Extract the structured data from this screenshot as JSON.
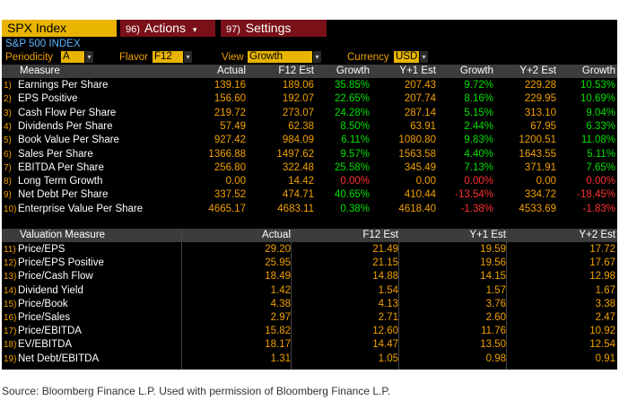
{
  "toolbar": {
    "index_label": "SPX Index",
    "actions_num": "96)",
    "actions_label": "Actions",
    "actions_arrow": "▾",
    "settings_num": "97)",
    "settings_label": "Settings"
  },
  "security_name": "S&P 500 INDEX",
  "controls": {
    "periodicity_label": "Periodicity",
    "periodicity_value": "A",
    "flavor_label": "Flavor",
    "flavor_value": "F12",
    "view_label": "View",
    "view_value": "Growth",
    "currency_label": "Currency",
    "currency_value": "USD",
    "dropdown_arrow": "▾"
  },
  "measures": {
    "headers": [
      "Measure",
      "Actual",
      "F12 Est",
      "Growth",
      "Y+1 Est",
      "Growth",
      "Y+2 Est",
      "Growth"
    ],
    "rows": [
      {
        "idx": "1)",
        "name": "Earnings Per Share",
        "actual": "139.16",
        "f12": "189.06",
        "g1": "35.85%",
        "y1": "207.43",
        "g2": "9.72%",
        "y2": "229.28",
        "g3": "10.53%",
        "s1": "pos",
        "s2": "pos",
        "s3": "pos"
      },
      {
        "idx": "2)",
        "name": "EPS Positive",
        "actual": "156.60",
        "f12": "192.07",
        "g1": "22.65%",
        "y1": "207.74",
        "g2": "8.16%",
        "y2": "229.95",
        "g3": "10.69%",
        "s1": "pos",
        "s2": "pos",
        "s3": "pos"
      },
      {
        "idx": "3)",
        "name": "Cash Flow Per Share",
        "actual": "219.72",
        "f12": "273.07",
        "g1": "24.28%",
        "y1": "287.14",
        "g2": "5.15%",
        "y2": "313.10",
        "g3": "9.04%",
        "s1": "pos",
        "s2": "pos",
        "s3": "pos"
      },
      {
        "idx": "4)",
        "name": "Dividends Per Share",
        "actual": "57.49",
        "f12": "62.38",
        "g1": "8.50%",
        "y1": "63.91",
        "g2": "2.44%",
        "y2": "67.95",
        "g3": "6.33%",
        "s1": "pos",
        "s2": "pos",
        "s3": "pos"
      },
      {
        "idx": "5)",
        "name": "Book Value Per Share",
        "actual": "927.42",
        "f12": "984.09",
        "g1": "6.11%",
        "y1": "1080.80",
        "g2": "9.83%",
        "y2": "1200.51",
        "g3": "11.08%",
        "s1": "pos",
        "s2": "pos",
        "s3": "pos"
      },
      {
        "idx": "6)",
        "name": "Sales Per Share",
        "actual": "1366.88",
        "f12": "1497.62",
        "g1": "9.57%",
        "y1": "1563.58",
        "g2": "4.40%",
        "y2": "1643.55",
        "g3": "5.11%",
        "s1": "pos",
        "s2": "pos",
        "s3": "pos"
      },
      {
        "idx": "7)",
        "name": "EBITDA Per Share",
        "actual": "256.80",
        "f12": "322.48",
        "g1": "25.58%",
        "y1": "345.49",
        "g2": "7.13%",
        "y2": "371.91",
        "g3": "7.65%",
        "s1": "pos",
        "s2": "pos",
        "s3": "pos"
      },
      {
        "idx": "8)",
        "name": "Long Term Growth",
        "actual": "0.00",
        "f12": "14.42",
        "g1": "0.00%",
        "y1": "0.00",
        "g2": "0.00%",
        "y2": "0.00",
        "g3": "0.00%",
        "s1": "neg",
        "s2": "neg",
        "s3": "neg"
      },
      {
        "idx": "9)",
        "name": "Net Debt Per Share",
        "actual": "337.52",
        "f12": "474.71",
        "g1": "40.65%",
        "y1": "410.44",
        "g2": "-13.54%",
        "y2": "334.72",
        "g3": "-18.45%",
        "s1": "pos",
        "s2": "neg",
        "s3": "neg"
      },
      {
        "idx": "10)",
        "name": "Enterprise Value Per Share",
        "actual": "4665.17",
        "f12": "4683.11",
        "g1": "0.38%",
        "y1": "4618.40",
        "g2": "-1.38%",
        "y2": "4533.69",
        "g3": "-1.83%",
        "s1": "pos",
        "s2": "neg",
        "s3": "neg"
      }
    ]
  },
  "valuation": {
    "headers": [
      "Valuation Measure",
      "Actual",
      "F12 Est",
      "Y+1 Est",
      "Y+2 Est"
    ],
    "rows": [
      {
        "idx": "11)",
        "name": "Price/EPS",
        "actual": "29.20",
        "f12": "21.49",
        "y1": "19.59",
        "y2": "17.72"
      },
      {
        "idx": "12)",
        "name": "Price/EPS Positive",
        "actual": "25.95",
        "f12": "21.15",
        "y1": "19.56",
        "y2": "17.67"
      },
      {
        "idx": "13)",
        "name": "Price/Cash Flow",
        "actual": "18.49",
        "f12": "14.88",
        "y1": "14.15",
        "y2": "12.98"
      },
      {
        "idx": "14)",
        "name": "Dividend Yield",
        "actual": "1.42",
        "f12": "1.54",
        "y1": "1.57",
        "y2": "1.67"
      },
      {
        "idx": "15)",
        "name": "Price/Book",
        "actual": "4.38",
        "f12": "4.13",
        "y1": "3.76",
        "y2": "3.38"
      },
      {
        "idx": "16)",
        "name": "Price/Sales",
        "actual": "2.97",
        "f12": "2.71",
        "y1": "2.60",
        "y2": "2.47"
      },
      {
        "idx": "17)",
        "name": "Price/EBITDA",
        "actual": "15.82",
        "f12": "12.60",
        "y1": "11.76",
        "y2": "10.92"
      },
      {
        "idx": "18)",
        "name": "EV/EBITDA",
        "actual": "18.17",
        "f12": "14.47",
        "y1": "13.50",
        "y2": "12.54"
      },
      {
        "idx": "19)",
        "name": "Net Debt/EBITDA",
        "actual": "1.31",
        "f12": "1.05",
        "y1": "0.98",
        "y2": "0.91"
      }
    ]
  },
  "source_note": "Source:  Bloomberg Finance L.P.  Used with permission of Bloomberg Finance L.P.",
  "colors": {
    "orange": "#f0a000",
    "yellow_button": "#e8b400",
    "maroon_button": "#7a1018",
    "positive": "#00e000",
    "negative": "#ff3030"
  }
}
